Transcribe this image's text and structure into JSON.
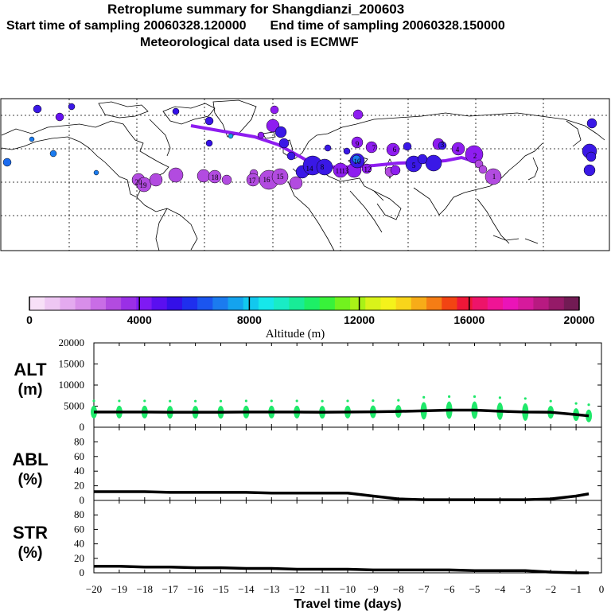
{
  "header": {
    "title": "Retroplume summary for Shangdianzi_200603",
    "start_label": "Start time of sampling 20060328.120000",
    "end_label": "End time of sampling 20060328.150000",
    "met_label": "Meteorological data used is ECMWF"
  },
  "colorbar": {
    "tick_labels": [
      "0",
      "4000",
      "8000",
      "12000",
      "16000",
      "20000"
    ],
    "label": "Altitude (m)",
    "colors": [
      "#f7e0f7",
      "#eec7f3",
      "#e4aaef",
      "#d88ee9",
      "#c96de6",
      "#b24be0",
      "#9a2fe6",
      "#7f1af3",
      "#5a0ff0",
      "#3410e8",
      "#1f2fee",
      "#1b55ef",
      "#1b7bef",
      "#14a3ee",
      "#12c8ee",
      "#16e7ea",
      "#19ecc5",
      "#18ec97",
      "#1def66",
      "#38f23a",
      "#72f21e",
      "#a9f217",
      "#d9f31a",
      "#f4f21b",
      "#f8d51b",
      "#f7ac18",
      "#f57d15",
      "#f24413",
      "#ee1738",
      "#ed1469",
      "#ef1495",
      "#ea14b8",
      "#d61a9c",
      "#b81a81",
      "#951a68",
      "#721b54"
    ]
  },
  "map": {
    "plume_numbers": [
      "1",
      "2",
      "3",
      "4",
      "5",
      "6",
      "7",
      "8",
      "9",
      "10",
      "11",
      "12",
      "13",
      "14",
      "15",
      "16",
      "17",
      "18",
      "19",
      "20"
    ]
  },
  "panels": {
    "alt": {
      "ylabel1": "ALT",
      "ylabel2": "(m)",
      "ticks": [
        "20000",
        "15000",
        "10000",
        "5000",
        "0"
      ]
    },
    "abl": {
      "ylabel1": "ABL",
      "ylabel2": "(%)",
      "ticks": [
        "80",
        "60",
        "40",
        "20",
        "0"
      ]
    },
    "str": {
      "ylabel1": "STR",
      "ylabel2": "(%)",
      "ticks": [
        "80",
        "60",
        "40",
        "20",
        "0"
      ]
    }
  },
  "xaxis": {
    "label": "Travel time (days)",
    "ticks": [
      "−20",
      "−19",
      "−18",
      "−17",
      "−16",
      "−15",
      "−14",
      "−13",
      "−12",
      "−11",
      "−10",
      "−9",
      "−8",
      "−7",
      "−6",
      "−5",
      "−4",
      "−3",
      "−2",
      "−1",
      "0"
    ]
  },
  "chart_data": [
    {
      "type": "line",
      "title": "ALT",
      "xlabel": "Travel time (days)",
      "ylabel": "ALT (m)",
      "x": [
        -20,
        -19,
        -18,
        -17,
        -16,
        -15,
        -14,
        -13,
        -12,
        -11,
        -10,
        -9,
        -8,
        -7,
        -6,
        -5,
        -4,
        -3,
        -2,
        -1,
        -0.5
      ],
      "values": [
        3600,
        3600,
        3600,
        3550,
        3550,
        3550,
        3600,
        3600,
        3600,
        3550,
        3600,
        3650,
        3750,
        3900,
        4050,
        4050,
        3800,
        3600,
        3550,
        3000,
        2700
      ],
      "xlim": [
        -20,
        0
      ],
      "ylim": [
        0,
        20000
      ]
    },
    {
      "type": "line",
      "title": "ABL",
      "xlabel": "Travel time (days)",
      "ylabel": "ABL (%)",
      "x": [
        -20,
        -19,
        -18,
        -17,
        -16,
        -15,
        -14,
        -13,
        -12,
        -11,
        -10,
        -9,
        -8,
        -7,
        -6,
        -5,
        -4,
        -3,
        -2,
        -1,
        -0.5
      ],
      "values": [
        12,
        12,
        12,
        11,
        11,
        11,
        11,
        10,
        10,
        10,
        10,
        6,
        2,
        1,
        1,
        1,
        1,
        1,
        2,
        6,
        9
      ],
      "xlim": [
        -20,
        0
      ],
      "ylim": [
        0,
        100
      ]
    },
    {
      "type": "line",
      "title": "STR",
      "xlabel": "Travel time (days)",
      "ylabel": "STR (%)",
      "x": [
        -20,
        -19,
        -18,
        -17,
        -16,
        -15,
        -14,
        -13,
        -12,
        -11,
        -10,
        -9,
        -8,
        -7,
        -6,
        -5,
        -4,
        -3,
        -2,
        -1,
        -0.5
      ],
      "values": [
        9,
        9,
        8,
        8,
        7,
        7,
        6,
        6,
        5,
        5,
        5,
        4,
        4,
        4,
        4,
        3,
        3,
        3,
        1,
        0,
        0
      ],
      "xlim": [
        -20,
        0
      ],
      "ylim": [
        0,
        100
      ]
    }
  ]
}
